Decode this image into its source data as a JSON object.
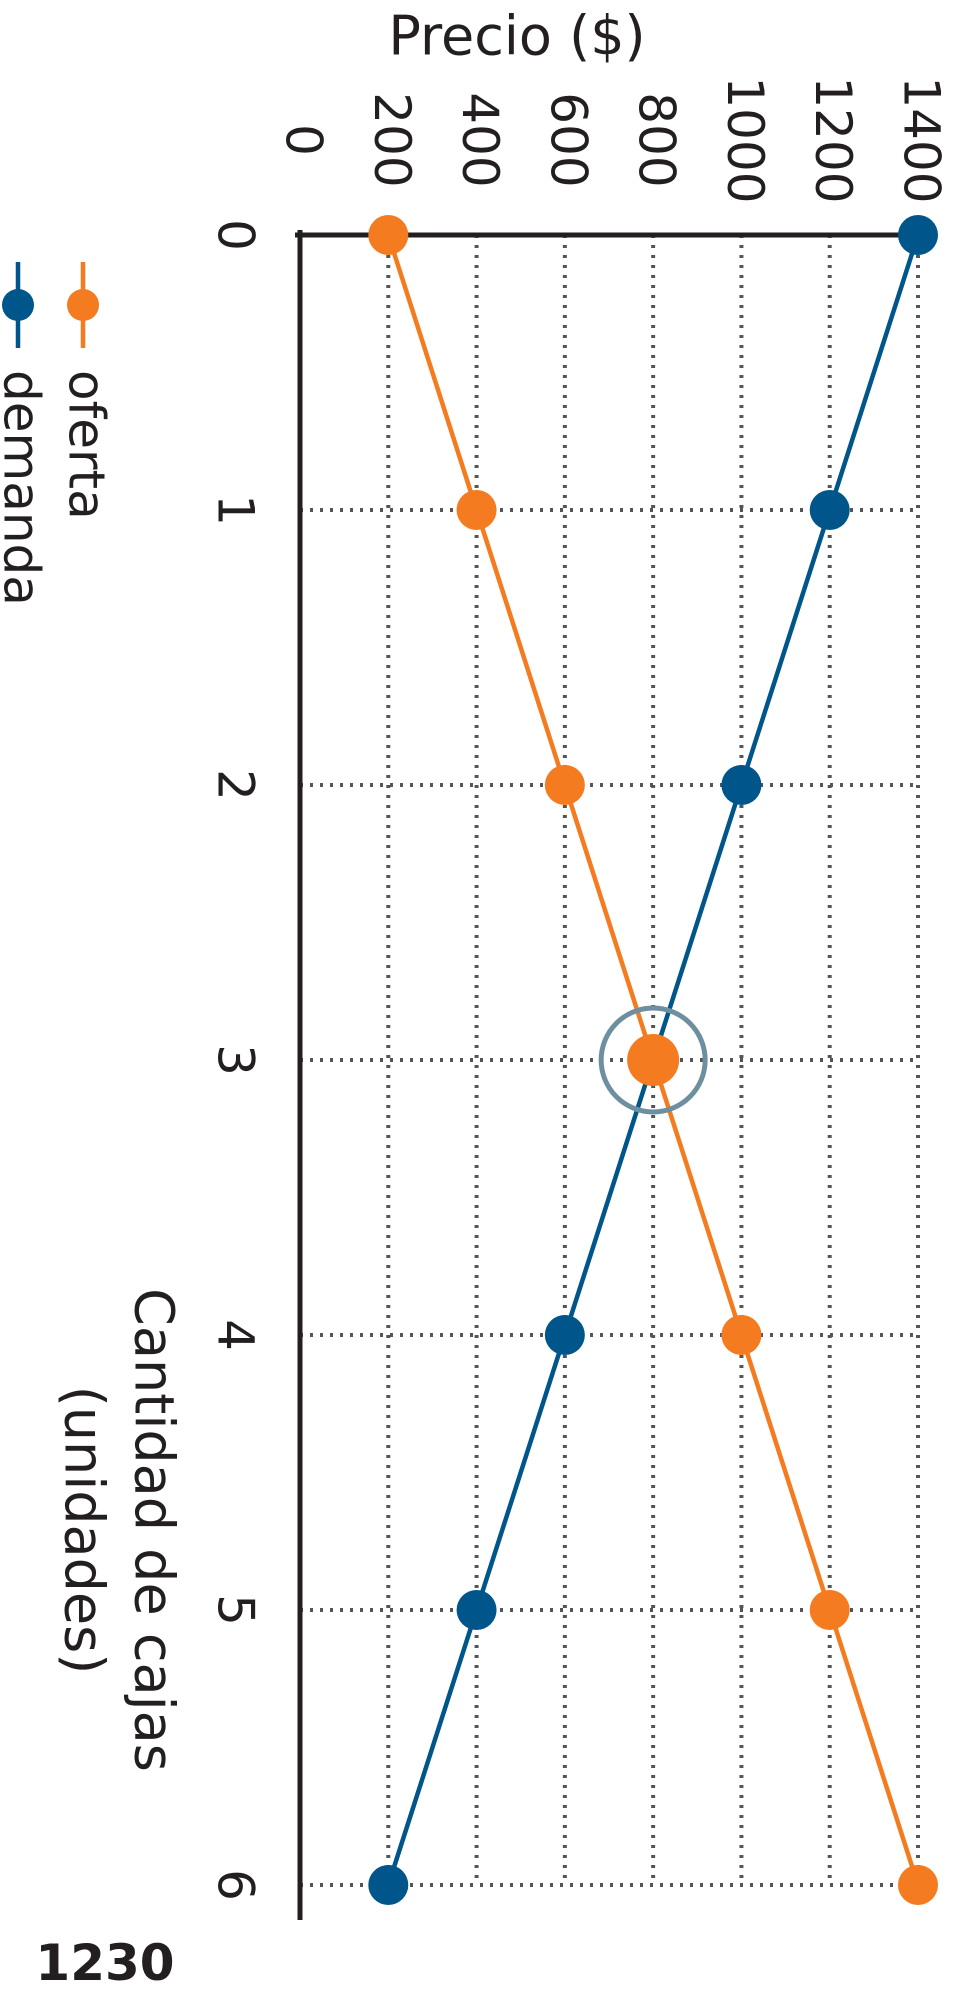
{
  "chart_data": {
    "type": "line",
    "x": [
      0,
      1,
      2,
      3,
      4,
      5,
      6
    ],
    "xlabel_line1": "Cantidad de cajas",
    "xlabel_line2": "(unidades)",
    "ylabel": "Precio ($)",
    "xlim": [
      0,
      6
    ],
    "ylim": [
      0,
      1400
    ],
    "x_ticks": [
      "0",
      "1",
      "2",
      "3",
      "4",
      "5",
      "6"
    ],
    "y_ticks": [
      "0",
      "200",
      "400",
      "600",
      "800",
      "1000",
      "1200",
      "1400"
    ],
    "grid": true,
    "grid_style": "dotted",
    "series": [
      {
        "name": "oferta",
        "values": [
          200,
          400,
          600,
          800,
          1000,
          1200,
          1400
        ],
        "color": "#f47b20"
      },
      {
        "name": "demanda",
        "values": [
          1400,
          1200,
          1000,
          800,
          600,
          400,
          200
        ],
        "color": "#00568a"
      }
    ],
    "equilibrium": {
      "x": 3,
      "y": 800,
      "ring_color": "#6e8fa0"
    },
    "legend_placement": "top-left",
    "orientation": "rotated-90-clockwise",
    "figure_code": "1230"
  }
}
